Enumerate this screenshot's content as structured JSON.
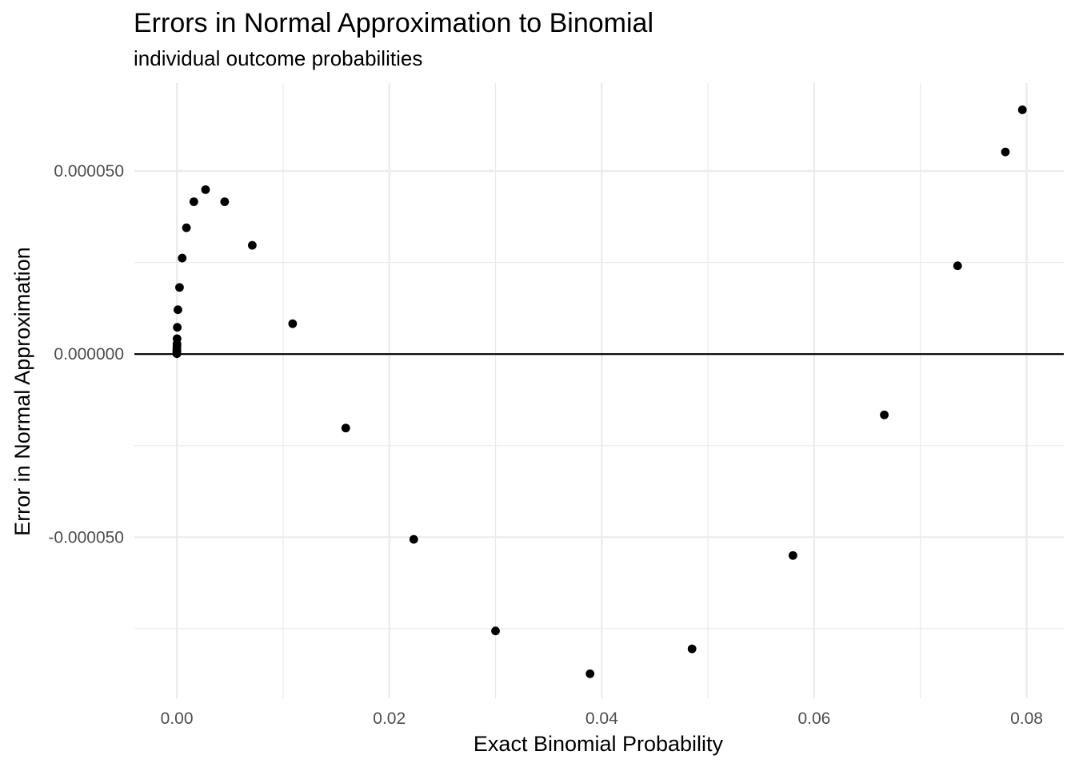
{
  "chart_data": {
    "type": "scatter",
    "title": "Errors in Normal Approximation to Binomial",
    "subtitle": "individual outcome probabilities",
    "xlabel": "Exact Binomial Probability",
    "ylabel": "Error in Normal Approximation",
    "xlim": [
      -0.004,
      0.0835
    ],
    "ylim": [
      -9.4e-05,
      7.4e-05
    ],
    "x_ticks": [
      0.0,
      0.02,
      0.04,
      0.06,
      0.08
    ],
    "x_tick_labels": [
      "0.00",
      "0.02",
      "0.04",
      "0.06",
      "0.08"
    ],
    "x_minor_ticks": [
      0.01,
      0.03,
      0.05,
      0.07
    ],
    "y_ticks": [
      -5e-05,
      0.0,
      5e-05
    ],
    "y_tick_labels": [
      "-0.000050",
      "0.000000",
      "0.000050"
    ],
    "y_minor_ticks": [
      -7.5e-05,
      -2.5e-05,
      2.5e-05
    ],
    "hline": 0,
    "grid": true,
    "legend": "none",
    "point_color": "#000000",
    "points": [
      {
        "x": 0.0,
        "y": 1e-07
      },
      {
        "x": 0.0,
        "y": 3e-07
      },
      {
        "x": 0.0,
        "y": 6e-07
      },
      {
        "x": 0.0,
        "y": 9e-07
      },
      {
        "x": 0.0,
        "y": 1.4e-06
      },
      {
        "x": 1e-05,
        "y": 2.2e-06
      },
      {
        "x": 1e-05,
        "y": 2.8e-06
      },
      {
        "x": 2e-05,
        "y": 4.2e-06
      },
      {
        "x": 4e-05,
        "y": 7.3e-06
      },
      {
        "x": 0.0001,
        "y": 1.21e-05
      },
      {
        "x": 0.00025,
        "y": 1.82e-05
      },
      {
        "x": 0.0005,
        "y": 2.62e-05
      },
      {
        "x": 0.0009,
        "y": 3.45e-05
      },
      {
        "x": 0.0016,
        "y": 4.16e-05
      },
      {
        "x": 0.0027,
        "y": 4.49e-05
      },
      {
        "x": 0.0045,
        "y": 4.16e-05
      },
      {
        "x": 0.0071,
        "y": 2.97e-05
      },
      {
        "x": 0.0109,
        "y": 8.3e-06
      },
      {
        "x": 0.0159,
        "y": -2.02e-05
      },
      {
        "x": 0.0223,
        "y": -5.06e-05
      },
      {
        "x": 0.03,
        "y": -7.56e-05
      },
      {
        "x": 0.0389,
        "y": -8.73e-05
      },
      {
        "x": 0.0485,
        "y": -8.05e-05
      },
      {
        "x": 0.058,
        "y": -5.5e-05
      },
      {
        "x": 0.0666,
        "y": -1.66e-05
      },
      {
        "x": 0.0735,
        "y": 2.41e-05
      },
      {
        "x": 0.078,
        "y": 5.52e-05
      },
      {
        "x": 0.0796,
        "y": 6.67e-05
      }
    ]
  }
}
